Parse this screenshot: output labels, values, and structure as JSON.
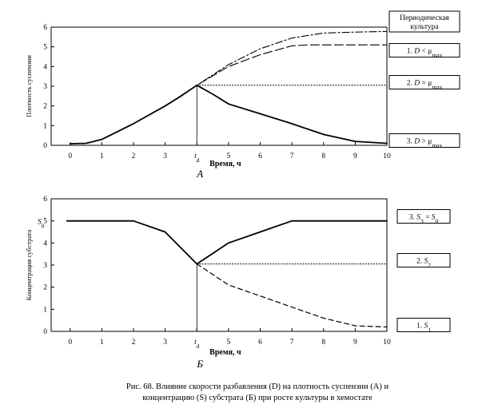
{
  "chart_data": [
    {
      "panel": "A",
      "type": "line",
      "panel_label": "А",
      "xlabel": "Время, ч",
      "ylabel": "Плотность суспензии",
      "xlim": [
        -0.6,
        10
      ],
      "ylim": [
        0,
        6
      ],
      "x_ticks": [
        "0",
        "1",
        "2",
        "3",
        "t_d",
        "5",
        "6",
        "7",
        "8",
        "9",
        "10"
      ],
      "y_ticks": [
        "0",
        "1",
        "2",
        "3",
        "4",
        "5",
        "6"
      ],
      "td": 4,
      "series": [
        {
          "name": "Периодическая культура",
          "style": "dashdot",
          "x": [
            0,
            0.5,
            1,
            2,
            3,
            4,
            5,
            6,
            7,
            8,
            9,
            10
          ],
          "y": [
            0.08,
            0.1,
            0.3,
            1.1,
            2.0,
            3.05,
            4.1,
            4.9,
            5.45,
            5.7,
            5.75,
            5.78
          ]
        },
        {
          "name": "1. D < μmax",
          "style": "longdash",
          "x": [
            0,
            0.5,
            1,
            2,
            3,
            4,
            5,
            6,
            7,
            7.5,
            10
          ],
          "y": [
            0.08,
            0.1,
            0.3,
            1.1,
            2.0,
            3.05,
            4.0,
            4.6,
            5.05,
            5.1,
            5.1
          ]
        },
        {
          "name": "2. D = μmax",
          "style": "dotted",
          "x": [
            4,
            10
          ],
          "y": [
            3.05,
            3.05
          ]
        },
        {
          "name": "3. D > μmax",
          "style": "solid",
          "x": [
            0,
            0.5,
            1,
            2,
            3,
            3.5,
            4,
            4.5,
            5,
            6,
            7,
            8,
            9,
            10
          ],
          "y": [
            0.08,
            0.1,
            0.3,
            1.1,
            2.0,
            2.5,
            3.05,
            2.6,
            2.1,
            1.6,
            1.1,
            0.55,
            0.2,
            0.1
          ]
        }
      ],
      "box_labels": [
        {
          "text": "Периодическая",
          "text2": "культура"
        },
        {
          "prefix": "1. ",
          "var": "D",
          "rel": " < ",
          "sym": "μ",
          "sub": "max"
        },
        {
          "prefix": "2. ",
          "var": "D",
          "rel": " = ",
          "sym": "μ",
          "sub": "max"
        },
        {
          "prefix": "3. ",
          "var": "D",
          "rel": " > ",
          "sym": "μ",
          "sub": "max"
        }
      ]
    },
    {
      "panel": "Б",
      "type": "line",
      "panel_label": "Б",
      "xlabel": "Время, ч",
      "ylabel": "Концентрация субстрата",
      "xlim": [
        -0.6,
        10
      ],
      "ylim": [
        0,
        6
      ],
      "x_ticks": [
        "0",
        "1",
        "2",
        "3",
        "t_d",
        "5",
        "6",
        "7",
        "8",
        "9",
        "10"
      ],
      "y_ticks": [
        "0",
        "1",
        "2",
        "3",
        "4",
        "5",
        "6"
      ],
      "y_special_tick": "S_0",
      "td": 4,
      "series": [
        {
          "name": "3. S3 = S0",
          "style": "solid",
          "x": [
            -0.1,
            2,
            3,
            4,
            5,
            6,
            7,
            10
          ],
          "y": [
            5.0,
            5.0,
            4.5,
            3.05,
            4.0,
            4.5,
            5.0,
            5.0
          ]
        },
        {
          "name": "2. S2",
          "style": "dotted",
          "x": [
            4,
            10
          ],
          "y": [
            3.05,
            3.05
          ]
        },
        {
          "name": "1. S1",
          "style": "dashed",
          "x": [
            4,
            5,
            6,
            7,
            8,
            9,
            10
          ],
          "y": [
            3.05,
            2.1,
            1.6,
            1.1,
            0.6,
            0.25,
            0.2
          ]
        }
      ],
      "box_labels": [
        {
          "prefix": "3. ",
          "var": "S",
          "sub": "3",
          "rel": " = ",
          "var2": "S",
          "sub2": "0"
        },
        {
          "prefix": "2. ",
          "var": "S",
          "sub": "2"
        },
        {
          "prefix": "1. ",
          "var": "S",
          "sub": "1"
        }
      ]
    }
  ],
  "caption": {
    "line1": "Рис. 68. Влияние скорости разбавления (D) на плотность суспензии (А) и",
    "line2": "концентрацию (S) субстрата (Б) при росте культуры в хемостате"
  }
}
